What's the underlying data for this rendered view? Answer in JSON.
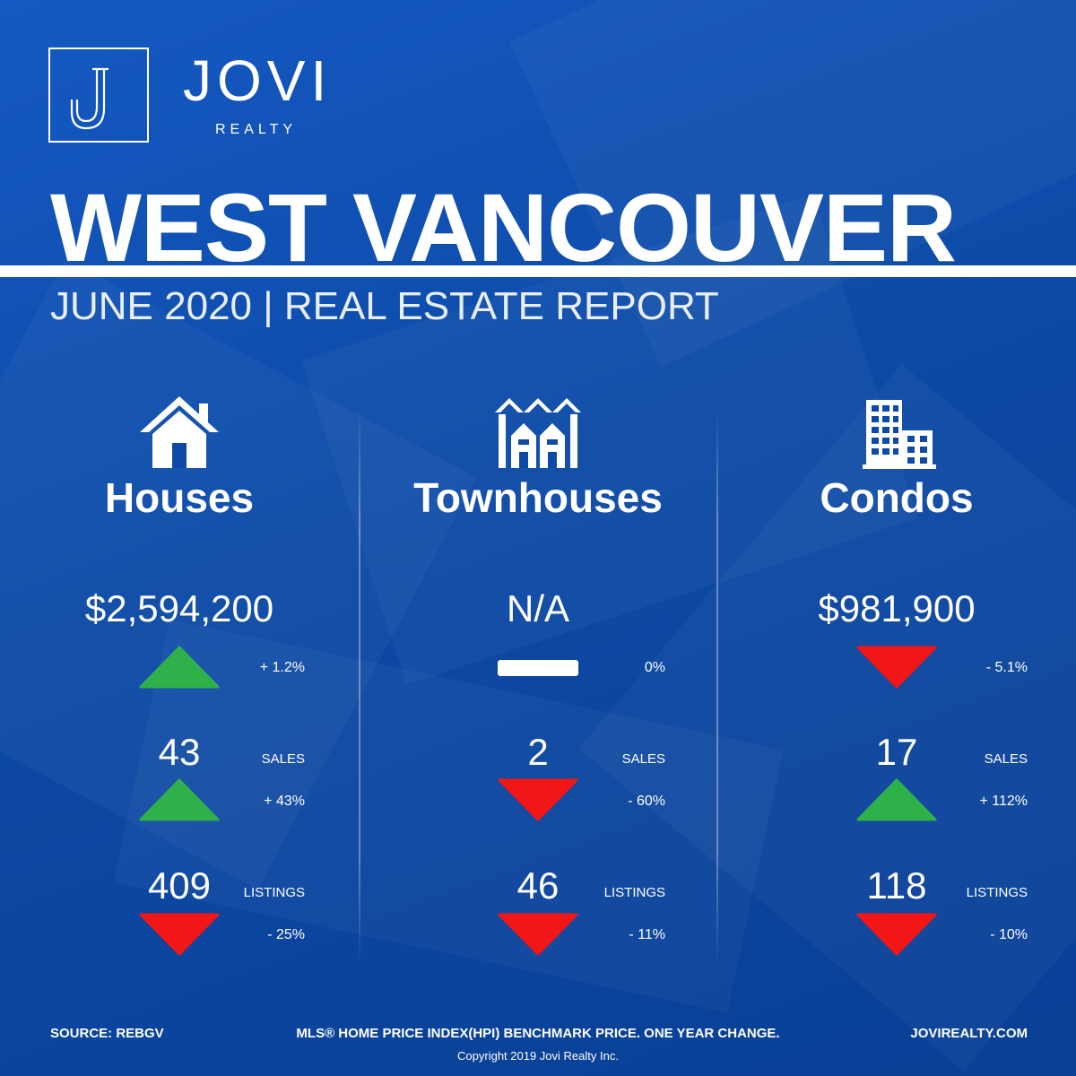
{
  "brand": {
    "name": "JOVI",
    "sub": "REALTY",
    "logo_icon": "j-monogram-icon"
  },
  "title": "WEST VANCOUVER",
  "subtitle": "JUNE 2020 | REAL ESTATE REPORT",
  "colors": {
    "up": "#2fb14a",
    "down": "#f21616",
    "background": "#0d4aa8"
  },
  "columns": [
    {
      "icon": "house-icon",
      "heading": "Houses",
      "price": "$2,594,200",
      "price_change": {
        "direction": "up",
        "text": "+ 1.2%"
      },
      "sales": {
        "value": "43",
        "label": "SALES",
        "direction": "up",
        "change": "+ 43%"
      },
      "listings": {
        "value": "409",
        "label": "LISTINGS",
        "direction": "down",
        "change": "- 25%"
      }
    },
    {
      "icon": "townhouse-icon",
      "heading": "Townhouses",
      "price": "N/A",
      "price_change": {
        "direction": "flat",
        "text": "0%"
      },
      "sales": {
        "value": "2",
        "label": "SALES",
        "direction": "down",
        "change": "- 60%"
      },
      "listings": {
        "value": "46",
        "label": "LISTINGS",
        "direction": "down",
        "change": "- 11%"
      }
    },
    {
      "icon": "condo-building-icon",
      "heading": "Condos",
      "price": "$981,900",
      "price_change": {
        "direction": "down",
        "text": "- 5.1%"
      },
      "sales": {
        "value": "17",
        "label": "SALES",
        "direction": "up",
        "change": "+ 112%"
      },
      "listings": {
        "value": "118",
        "label": "LISTINGS",
        "direction": "down",
        "change": "- 10%"
      }
    }
  ],
  "footer": {
    "source": "SOURCE:  REBGV",
    "note": "MLS® HOME PRICE INDEX(HPI) BENCHMARK PRICE. ONE YEAR CHANGE.",
    "website": "JOVIREALTY.COM",
    "copyright": "Copyright 2019 Jovi Realty Inc."
  }
}
